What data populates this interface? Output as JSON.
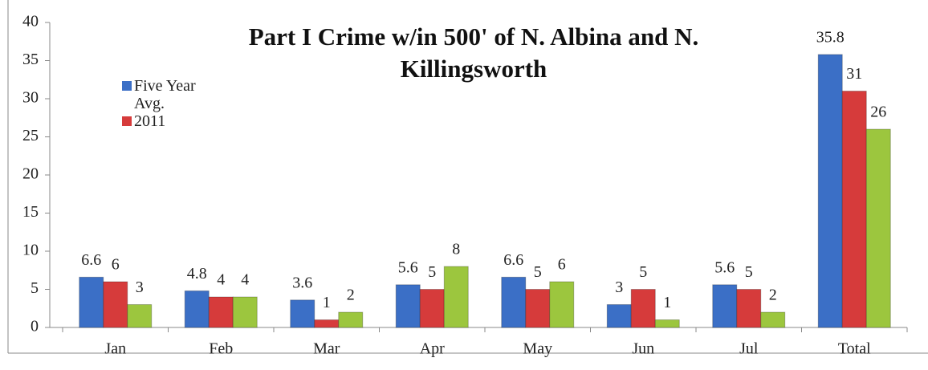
{
  "chart_data": {
    "type": "bar",
    "title": "Part I Crime w/in 500' of N. Albina and N. Killingsworth",
    "categories": [
      "Jan",
      "Feb",
      "Mar",
      "Apr",
      "May",
      "Jun",
      "Jul",
      "Total"
    ],
    "series": [
      {
        "name": "Five Year Avg.",
        "color": "#3b6fc6",
        "values": [
          6.6,
          4.8,
          3.6,
          5.6,
          6.6,
          3,
          5.6,
          35.8
        ]
      },
      {
        "name": "2011",
        "color": "#d63b3b",
        "values": [
          6,
          4,
          1,
          5,
          5,
          5,
          5,
          31
        ]
      },
      {
        "color": "#9cc63e",
        "values": [
          3,
          4,
          2,
          8,
          6,
          1,
          2,
          26
        ]
      }
    ],
    "ylim": [
      0,
      40
    ],
    "yticks": [
      0,
      5,
      10,
      15,
      20,
      25,
      30,
      35,
      40
    ],
    "grid": false
  }
}
